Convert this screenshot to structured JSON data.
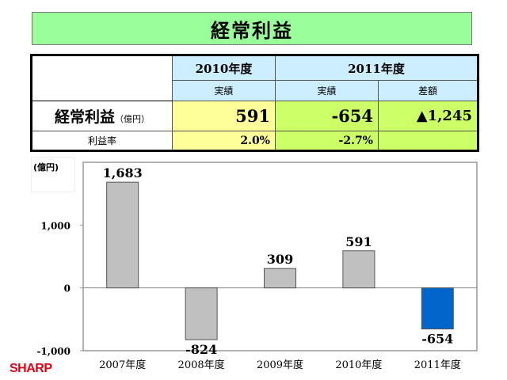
{
  "title": "経常利益",
  "table": {
    "header_2010": "2010年度",
    "header_2011": "2011年度",
    "sub_2010": "実績",
    "sub_2011": "実績",
    "sub_diff": "差額",
    "row1_label": "経常利益",
    "row1_unit": "（億円）",
    "row1_2010": "591",
    "row1_2011": "-654",
    "row1_diff": "▲1,245",
    "row2_label": "利益率",
    "row2_2010": "2.0%",
    "row2_2011": "-2.7%"
  },
  "chart_data": {
    "type": "bar",
    "unit_label": "(億円)",
    "categories": [
      "2007年度",
      "2008年度",
      "2009年度",
      "2010年度",
      "2011年度"
    ],
    "values": [
      1683,
      -824,
      309,
      591,
      -654
    ],
    "value_labels": [
      "1,683",
      "-824",
      "309",
      "591",
      "-654"
    ],
    "colors": [
      "#c0c0c0",
      "#c0c0c0",
      "#c0c0c0",
      "#c0c0c0",
      "#0066cc"
    ],
    "ylim": [
      -1000,
      2000
    ],
    "yticks": [
      1000,
      0,
      -1000
    ],
    "ytick_labels": [
      "1,000",
      "0",
      "-1,000"
    ]
  },
  "logo": "SHARP"
}
